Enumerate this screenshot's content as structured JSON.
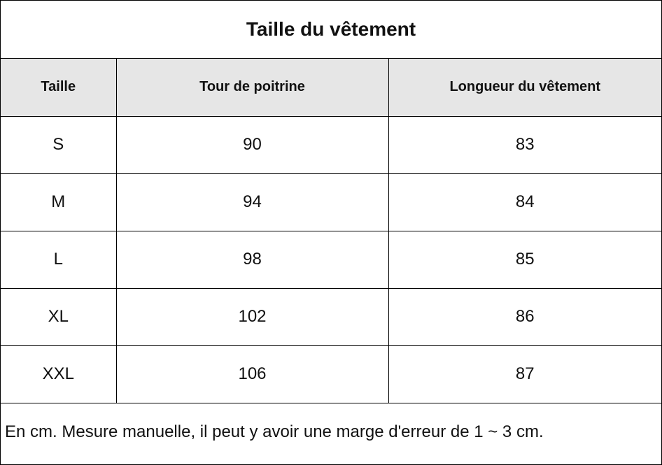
{
  "title": "Taille du vêtement",
  "table": {
    "headers": [
      "Taille",
      "Tour de poitrine",
      "Longueur du vêtement"
    ],
    "rows": [
      [
        "S",
        "90",
        "83"
      ],
      [
        "M",
        "94",
        "84"
      ],
      [
        "L",
        "98",
        "85"
      ],
      [
        "XL",
        "102",
        "86"
      ],
      [
        "XXL",
        "106",
        "87"
      ]
    ]
  },
  "note": "En cm.  Mesure manuelle, il peut y avoir une marge d'erreur de 1 ~ 3 cm.",
  "colors": {
    "header_background": "#e6e6e6",
    "border": "#000000"
  }
}
